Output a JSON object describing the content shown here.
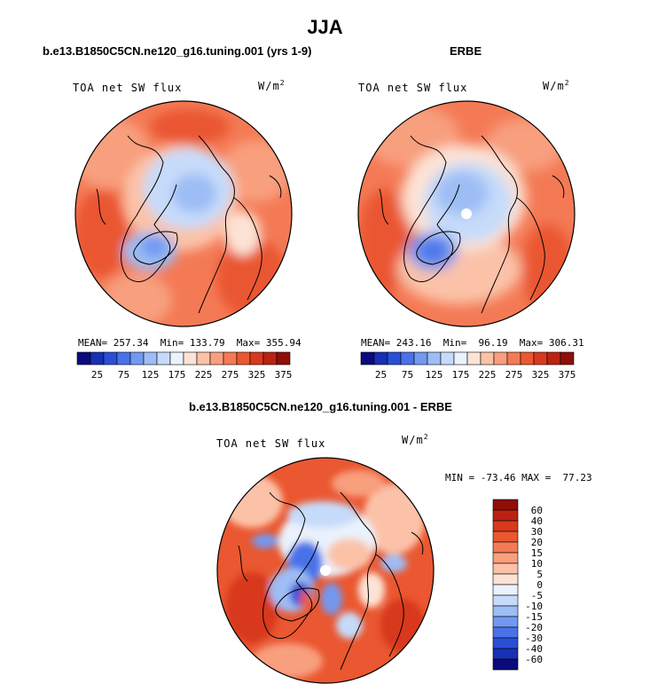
{
  "figure": {
    "season": "JJA"
  },
  "panels": [
    {
      "title": "b.e13.B1850C5CN.ne120_g16.tuning.001 (yrs 1-9)",
      "variable": "TOA net SW flux",
      "unit": "W/m",
      "unit_exp": "2",
      "stats": {
        "mean": "257.34",
        "min": "133.79",
        "max": "355.94"
      },
      "stats_text": "MEAN= 257.34  Min= 133.79  Max= 355.94"
    },
    {
      "title": "ERBE",
      "variable": "TOA net SW flux",
      "unit": "W/m",
      "unit_exp": "2",
      "stats": {
        "mean": "243.16",
        "min": "96.19",
        "max": "306.31"
      },
      "stats_text": "MEAN= 243.16  Min=  96.19  Max= 306.31"
    },
    {
      "title": "b.e13.B1850C5CN.ne120_g16.tuning.001 - ERBE",
      "variable": "TOA net SW flux",
      "unit": "W/m",
      "unit_exp": "2",
      "stats": {
        "min": "-73.46",
        "max": "77.23"
      },
      "stats_text": "MIN = -73.46 MAX =  77.23"
    }
  ],
  "colorbar_abs": {
    "labels": [
      "25",
      "75",
      "125",
      "175",
      "225",
      "275",
      "325",
      "375"
    ],
    "colors": [
      "#0b0b7d",
      "#1830b5",
      "#2a4fd6",
      "#4a72e8",
      "#7299f0",
      "#9dbdf5",
      "#c6dbfa",
      "#eaf2fd",
      "#fde3d5",
      "#fbc2a8",
      "#f89f7e",
      "#f47a55",
      "#ea5730",
      "#d8391d",
      "#bb2212",
      "#8e0f08"
    ]
  },
  "colorbar_diff": {
    "labels": [
      "60",
      "40",
      "30",
      "20",
      "15",
      "10",
      "5",
      "0",
      "-5",
      "-10",
      "-15",
      "-20",
      "-30",
      "-40",
      "-60"
    ],
    "colors": [
      "#8e0f08",
      "#bb2212",
      "#d8391d",
      "#ea5730",
      "#f47a55",
      "#f89f7e",
      "#fbc2a8",
      "#fde3d5",
      "#eaf2fd",
      "#c6dbfa",
      "#9dbdf5",
      "#7299f0",
      "#4a72e8",
      "#2a4fd6",
      "#1830b5",
      "#0b0b7d"
    ]
  }
}
